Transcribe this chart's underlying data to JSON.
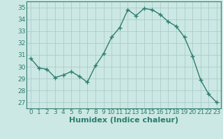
{
  "x": [
    0,
    1,
    2,
    3,
    4,
    5,
    6,
    7,
    8,
    9,
    10,
    11,
    12,
    13,
    14,
    15,
    16,
    17,
    18,
    19,
    20,
    21,
    22,
    23
  ],
  "y": [
    30.7,
    29.9,
    29.8,
    29.1,
    29.3,
    29.6,
    29.2,
    28.7,
    30.1,
    31.1,
    32.5,
    33.3,
    34.8,
    34.3,
    34.9,
    34.8,
    34.4,
    33.8,
    33.4,
    32.5,
    30.9,
    28.9,
    27.7,
    27.0
  ],
  "line_color": "#2e7d6e",
  "marker": "+",
  "marker_size": 4,
  "bg_color": "#cce8e4",
  "grid_color": "#aacccc",
  "axes_color": "#2e7d6e",
  "xlabel": "Humidex (Indice chaleur)",
  "ylim": [
    26.5,
    35.5
  ],
  "xlim": [
    -0.5,
    23.5
  ],
  "yticks": [
    27,
    28,
    29,
    30,
    31,
    32,
    33,
    34,
    35
  ],
  "xticks": [
    0,
    1,
    2,
    3,
    4,
    5,
    6,
    7,
    8,
    9,
    10,
    11,
    12,
    13,
    14,
    15,
    16,
    17,
    18,
    19,
    20,
    21,
    22,
    23
  ],
  "tick_label_fontsize": 6.5,
  "xlabel_fontsize": 8,
  "line_width": 1.0,
  "marker_edge_width": 1.0
}
